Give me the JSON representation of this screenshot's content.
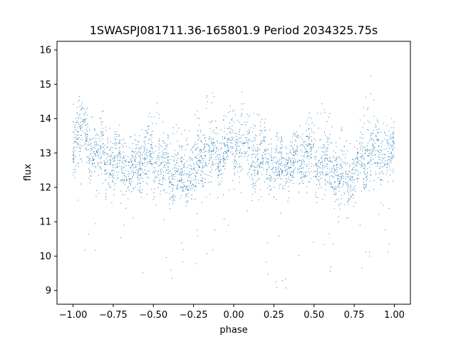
{
  "chart_data": {
    "type": "scatter",
    "title": "1SWASPJ081711.36-165801.9 Period 2034325.75s",
    "xlabel": "phase",
    "ylabel": "flux",
    "xlim": [
      -1.1,
      1.1
    ],
    "ylim": [
      8.6,
      16.25
    ],
    "xticks": [
      -1.0,
      -0.75,
      -0.5,
      -0.25,
      0.0,
      0.25,
      0.5,
      0.75,
      1.0
    ],
    "xtick_labels": [
      "−1.00",
      "−0.75",
      "−0.50",
      "−0.25",
      "0.00",
      "0.25",
      "0.50",
      "0.75",
      "1.00"
    ],
    "yticks": [
      9,
      10,
      11,
      12,
      13,
      14,
      15,
      16
    ],
    "ytick_labels": [
      "9",
      "10",
      "11",
      "12",
      "13",
      "14",
      "15",
      "16"
    ],
    "grid": false,
    "marker_color": "#1f77b4",
    "series": [
      {
        "values_note_omitted": true,
        "profile": [
          {
            "x": -1.0,
            "center": 13.3,
            "spread": 0.55,
            "top": 14.4
          },
          {
            "x": -0.95,
            "center": 13.6,
            "spread": 0.65,
            "top": 14.4
          },
          {
            "x": -0.9,
            "center": 13.0,
            "spread": 0.55,
            "top": 14.1
          },
          {
            "x": -0.85,
            "center": 13.0,
            "spread": 0.55,
            "top": 13.8
          },
          {
            "x": -0.8,
            "center": 12.9,
            "spread": 0.55,
            "top": 14.1
          },
          {
            "x": -0.75,
            "center": 12.5,
            "spread": 0.5,
            "top": 13.6
          },
          {
            "x": -0.7,
            "center": 12.8,
            "spread": 0.45,
            "top": 13.6
          },
          {
            "x": -0.65,
            "center": 12.4,
            "spread": 0.5,
            "top": 13.4
          },
          {
            "x": -0.6,
            "center": 12.7,
            "spread": 0.5,
            "top": 13.4
          },
          {
            "x": -0.55,
            "center": 12.9,
            "spread": 0.55,
            "top": 14.0
          },
          {
            "x": -0.5,
            "center": 12.8,
            "spread": 0.55,
            "top": 14.2
          },
          {
            "x": -0.45,
            "center": 12.6,
            "spread": 0.6,
            "top": 14.6
          },
          {
            "x": -0.4,
            "center": 12.6,
            "spread": 0.55,
            "top": 13.8
          },
          {
            "x": -0.35,
            "center": 12.4,
            "spread": 0.55,
            "top": 13.8
          },
          {
            "x": -0.3,
            "center": 12.1,
            "spread": 0.5,
            "top": 13.6
          },
          {
            "x": -0.25,
            "center": 12.5,
            "spread": 0.6,
            "top": 14.1
          },
          {
            "x": -0.2,
            "center": 12.8,
            "spread": 0.55,
            "top": 14.3
          },
          {
            "x": -0.15,
            "center": 13.0,
            "spread": 0.55,
            "top": 15.3
          },
          {
            "x": -0.1,
            "center": 12.9,
            "spread": 0.5,
            "top": 14.0
          },
          {
            "x": -0.05,
            "center": 13.1,
            "spread": 0.5,
            "top": 14.3
          },
          {
            "x": 0.0,
            "center": 13.2,
            "spread": 0.55,
            "top": 14.8
          },
          {
            "x": 0.05,
            "center": 13.3,
            "spread": 0.6,
            "top": 14.5
          },
          {
            "x": 0.1,
            "center": 12.9,
            "spread": 0.55,
            "top": 14.1
          },
          {
            "x": 0.15,
            "center": 12.8,
            "spread": 0.55,
            "top": 14.1
          },
          {
            "x": 0.2,
            "center": 12.7,
            "spread": 0.55,
            "top": 13.8
          },
          {
            "x": 0.25,
            "center": 12.6,
            "spread": 0.5,
            "top": 13.6
          },
          {
            "x": 0.3,
            "center": 12.6,
            "spread": 0.5,
            "top": 13.5
          },
          {
            "x": 0.35,
            "center": 12.7,
            "spread": 0.5,
            "top": 13.5
          },
          {
            "x": 0.4,
            "center": 12.8,
            "spread": 0.5,
            "top": 13.7
          },
          {
            "x": 0.45,
            "center": 13.0,
            "spread": 0.55,
            "top": 14.0
          },
          {
            "x": 0.5,
            "center": 12.8,
            "spread": 0.55,
            "top": 14.0
          },
          {
            "x": 0.55,
            "center": 12.6,
            "spread": 0.6,
            "top": 15.2
          },
          {
            "x": 0.6,
            "center": 12.5,
            "spread": 0.55,
            "top": 14.1
          },
          {
            "x": 0.65,
            "center": 12.4,
            "spread": 0.55,
            "top": 13.8
          },
          {
            "x": 0.7,
            "center": 12.1,
            "spread": 0.5,
            "top": 13.6
          },
          {
            "x": 0.75,
            "center": 12.4,
            "spread": 0.6,
            "top": 14.0
          },
          {
            "x": 0.8,
            "center": 12.8,
            "spread": 0.55,
            "top": 14.1
          },
          {
            "x": 0.85,
            "center": 13.0,
            "spread": 0.55,
            "top": 15.3
          },
          {
            "x": 0.9,
            "center": 12.9,
            "spread": 0.5,
            "top": 14.0
          },
          {
            "x": 0.95,
            "center": 13.0,
            "spread": 0.5,
            "top": 13.8
          },
          {
            "x": 1.0,
            "center": 12.9,
            "spread": 0.5,
            "top": 13.5
          }
        ]
      }
    ]
  }
}
